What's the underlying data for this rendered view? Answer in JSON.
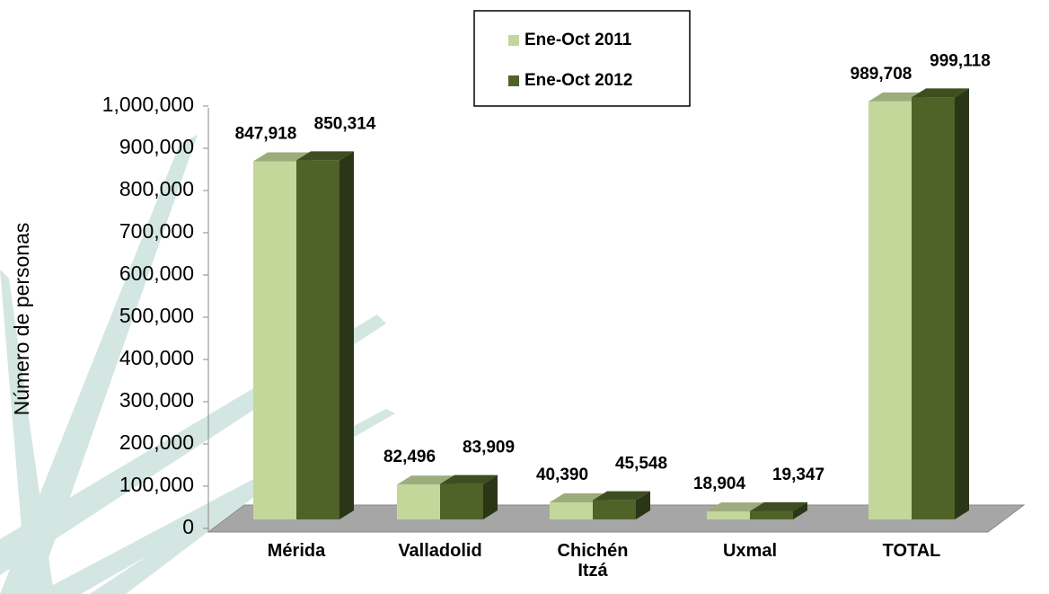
{
  "chart_data": {
    "type": "bar3d",
    "y_label": "Número de personas",
    "categories": [
      "Mérida",
      "Valladolid",
      "Chichén Itzá",
      "Uxmal",
      "TOTAL"
    ],
    "series": [
      {
        "name": "Ene-Oct 2011",
        "color": "#c4d79b",
        "values": [
          847918,
          82496,
          40390,
          18904,
          989708
        ],
        "value_labels": [
          "847,918",
          "82,496",
          "40,390",
          "18,904",
          "989,708"
        ]
      },
      {
        "name": "Ene-Oct 2012",
        "color": "#4f6228",
        "values": [
          850314,
          83909,
          45548,
          19347,
          999118
        ],
        "value_labels": [
          "850,314",
          "83,909",
          "45,548",
          "19,347",
          "999,118"
        ]
      }
    ],
    "ylim": [
      0,
      1000000
    ],
    "yticks": [
      {
        "value": 0,
        "label": "0"
      },
      {
        "value": 100000,
        "label": "100,000"
      },
      {
        "value": 200000,
        "label": "200,000"
      },
      {
        "value": 300000,
        "label": "300,000"
      },
      {
        "value": 400000,
        "label": "400,000"
      },
      {
        "value": 500000,
        "label": "500,000"
      },
      {
        "value": 600000,
        "label": "600,000"
      },
      {
        "value": 700000,
        "label": "700,000"
      },
      {
        "value": 800000,
        "label": "800,000"
      },
      {
        "value": 900000,
        "label": "900,000"
      },
      {
        "value": 1000000,
        "label": "1,000,000"
      }
    ],
    "legend": "top"
  }
}
